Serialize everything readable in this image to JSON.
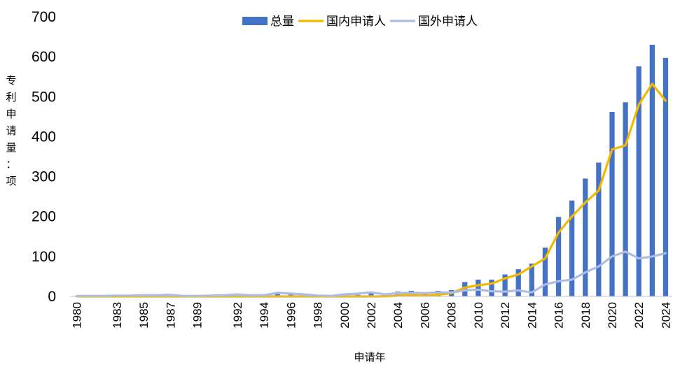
{
  "chart_data": {
    "type": "bar+line",
    "xlabel": "申请年",
    "ylabel": "专利申请量：项",
    "ylim": [
      0,
      700
    ],
    "yticks": [
      0,
      100,
      200,
      300,
      400,
      500,
      600,
      700
    ],
    "x": [
      1980,
      1981,
      1982,
      1983,
      1984,
      1985,
      1986,
      1987,
      1988,
      1989,
      1990,
      1991,
      1992,
      1993,
      1994,
      1995,
      1996,
      1997,
      1998,
      1999,
      2000,
      2001,
      2002,
      2003,
      2004,
      2005,
      2006,
      2007,
      2008,
      2009,
      2010,
      2011,
      2012,
      2013,
      2014,
      2015,
      2016,
      2017,
      2018,
      2019,
      2020,
      2021,
      2022,
      2023,
      2024
    ],
    "xtick_labels": [
      "1980",
      "1983",
      "1985",
      "1987",
      "1989",
      "1992",
      "1994",
      "1996",
      "1998",
      "2000",
      "2002",
      "2004",
      "2006",
      "2008",
      "2010",
      "2012",
      "2014",
      "2016",
      "2018",
      "2020",
      "2022",
      "2024"
    ],
    "legend_position": "top",
    "grid": false,
    "series": [
      {
        "name": "总量",
        "kind": "bar",
        "color": "#4472C4",
        "values": [
          1,
          1,
          1,
          1,
          2,
          2,
          3,
          3,
          1,
          1,
          2,
          3,
          3,
          2,
          2,
          6,
          6,
          5,
          2,
          1,
          3,
          4,
          7,
          4,
          12,
          14,
          8,
          14,
          16,
          36,
          42,
          42,
          55,
          68,
          82,
          122,
          199,
          240,
          295,
          335,
          462,
          486,
          576,
          630,
          597
        ]
      },
      {
        "name": "国内申请人",
        "kind": "line",
        "color": "#F5B800",
        "values": [
          0,
          0,
          0,
          0,
          0,
          0,
          0,
          0,
          0,
          0,
          0,
          0,
          0,
          0,
          0,
          0,
          0,
          0,
          0,
          0,
          0,
          0,
          0,
          0,
          2,
          4,
          2,
          4,
          8,
          22,
          28,
          32,
          45,
          55,
          75,
          95,
          160,
          200,
          235,
          265,
          368,
          378,
          480,
          532,
          490
        ]
      },
      {
        "name": "国外申请人",
        "kind": "line",
        "color": "#ADBCE0",
        "values": [
          1,
          1,
          1,
          2,
          2,
          3,
          3,
          4,
          1,
          1,
          2,
          3,
          5,
          3,
          3,
          9,
          7,
          5,
          2,
          1,
          5,
          7,
          10,
          5,
          8,
          9,
          8,
          10,
          10,
          15,
          17,
          13,
          12,
          15,
          10,
          30,
          38,
          42,
          60,
          75,
          100,
          112,
          95,
          100,
          108
        ]
      }
    ]
  }
}
